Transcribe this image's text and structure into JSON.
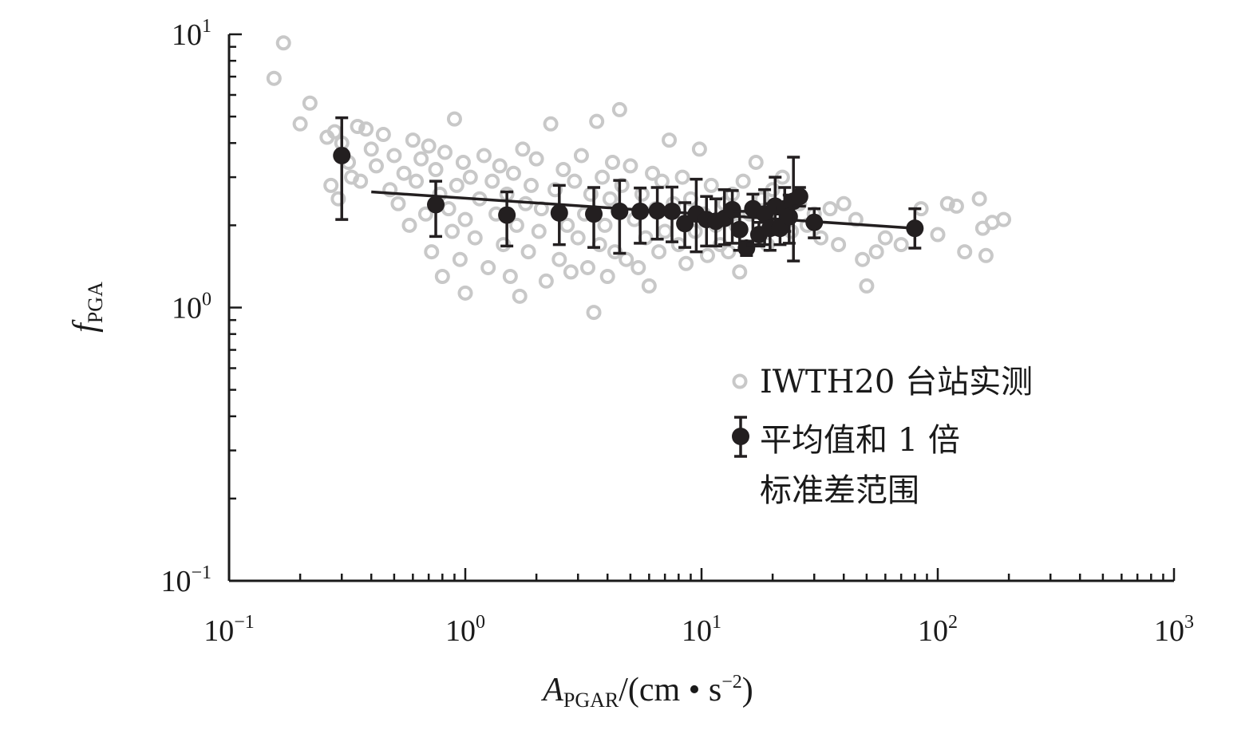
{
  "chart_data": {
    "type": "scatter",
    "x_scale": "log",
    "y_scale": "log",
    "xlim": [
      0.1,
      1000
    ],
    "ylim": [
      0.1,
      10
    ],
    "xticks": [
      {
        "base": "10",
        "exp": "−1"
      },
      {
        "base": "10",
        "exp": "0"
      },
      {
        "base": "10",
        "exp": "1"
      },
      {
        "base": "10",
        "exp": "2"
      },
      {
        "base": "10",
        "exp": "3"
      }
    ],
    "yticks": [
      {
        "base": "10",
        "exp": "−1"
      },
      {
        "base": "10",
        "exp": "0"
      },
      {
        "base": "10",
        "exp": "1"
      }
    ],
    "xlabel": {
      "main": "A",
      "sub": "PGAR",
      "unit": "/(cm • s",
      "unit_exp": "−2",
      "unit_close": ")"
    },
    "ylabel": {
      "main": "f",
      "sub": "PGA"
    },
    "grid": false,
    "legend_position": "center-right",
    "legend": [
      {
        "label": "IWTH20 台站实测",
        "marker": "open-circle"
      },
      {
        "label_line1": "平均值和 1 倍",
        "label_line2": "标准差范围",
        "marker": "filled-circle-errorbar"
      }
    ],
    "colors": {
      "observed": "#c8c8c8",
      "mean": "#231f20",
      "axis": "#1a1a1a"
    },
    "observed_series": {
      "name": "IWTH20 台站实测",
      "points": [
        [
          0.155,
          6.9
        ],
        [
          0.17,
          9.3
        ],
        [
          0.2,
          4.7
        ],
        [
          0.22,
          5.6
        ],
        [
          0.26,
          4.2
        ],
        [
          0.28,
          4.4
        ],
        [
          0.3,
          4.0
        ],
        [
          0.32,
          3.4
        ],
        [
          0.35,
          4.6
        ],
        [
          0.38,
          4.5
        ],
        [
          0.27,
          2.8
        ],
        [
          0.29,
          2.5
        ],
        [
          0.33,
          3.0
        ],
        [
          0.36,
          2.9
        ],
        [
          0.4,
          3.8
        ],
        [
          0.42,
          3.3
        ],
        [
          0.45,
          4.3
        ],
        [
          0.48,
          2.7
        ],
        [
          0.5,
          3.6
        ],
        [
          0.52,
          2.4
        ],
        [
          0.55,
          3.1
        ],
        [
          0.58,
          2.0
        ],
        [
          0.6,
          4.1
        ],
        [
          0.62,
          2.9
        ],
        [
          0.65,
          3.5
        ],
        [
          0.68,
          2.2
        ],
        [
          0.7,
          3.9
        ],
        [
          0.72,
          1.6
        ],
        [
          0.75,
          3.2
        ],
        [
          0.78,
          2.6
        ],
        [
          0.8,
          1.3
        ],
        [
          0.82,
          3.7
        ],
        [
          0.85,
          2.3
        ],
        [
          0.88,
          1.9
        ],
        [
          0.9,
          4.9
        ],
        [
          0.92,
          2.8
        ],
        [
          0.95,
          1.5
        ],
        [
          0.98,
          3.4
        ],
        [
          1.0,
          2.1
        ],
        [
          1.0,
          1.13
        ],
        [
          1.05,
          3.0
        ],
        [
          1.1,
          1.8
        ],
        [
          1.15,
          2.5
        ],
        [
          1.2,
          3.6
        ],
        [
          1.25,
          1.4
        ],
        [
          1.3,
          2.9
        ],
        [
          1.35,
          2.2
        ],
        [
          1.4,
          3.3
        ],
        [
          1.45,
          1.7
        ],
        [
          1.5,
          2.6
        ],
        [
          1.55,
          1.3
        ],
        [
          1.6,
          3.1
        ],
        [
          1.65,
          2.0
        ],
        [
          1.7,
          1.1
        ],
        [
          1.75,
          3.8
        ],
        [
          1.8,
          2.4
        ],
        [
          1.85,
          1.6
        ],
        [
          1.9,
          2.8
        ],
        [
          2.0,
          3.5
        ],
        [
          2.05,
          1.9
        ],
        [
          2.1,
          2.3
        ],
        [
          2.2,
          1.25
        ],
        [
          2.3,
          4.7
        ],
        [
          2.4,
          2.7
        ],
        [
          2.5,
          1.5
        ],
        [
          2.6,
          3.2
        ],
        [
          2.7,
          2.0
        ],
        [
          2.8,
          1.35
        ],
        [
          2.9,
          2.9
        ],
        [
          3.0,
          1.8
        ],
        [
          3.1,
          3.6
        ],
        [
          3.2,
          2.2
        ],
        [
          3.3,
          1.4
        ],
        [
          3.4,
          2.6
        ],
        [
          3.5,
          0.96
        ],
        [
          3.6,
          4.8
        ],
        [
          3.7,
          1.7
        ],
        [
          3.8,
          3.0
        ],
        [
          3.9,
          2.0
        ],
        [
          4.0,
          1.3
        ],
        [
          4.1,
          2.5
        ],
        [
          4.2,
          3.4
        ],
        [
          4.3,
          1.6
        ],
        [
          4.5,
          5.3
        ],
        [
          4.6,
          2.8
        ],
        [
          4.8,
          1.5
        ],
        [
          5.0,
          3.3
        ],
        [
          5.2,
          2.1
        ],
        [
          5.4,
          1.4
        ],
        [
          5.6,
          2.6
        ],
        [
          5.8,
          1.8
        ],
        [
          6.0,
          1.2
        ],
        [
          6.2,
          3.1
        ],
        [
          6.4,
          2.3
        ],
        [
          6.6,
          1.6
        ],
        [
          6.8,
          2.9
        ],
        [
          7.0,
          1.9
        ],
        [
          7.3,
          4.1
        ],
        [
          7.6,
          2.4
        ],
        [
          8.0,
          1.7
        ],
        [
          8.3,
          3.0
        ],
        [
          8.6,
          1.45
        ],
        [
          9.0,
          2.5
        ],
        [
          9.4,
          1.9
        ],
        [
          9.8,
          3.8
        ],
        [
          10.2,
          2.2
        ],
        [
          10.6,
          1.55
        ],
        [
          11.0,
          2.8
        ],
        [
          11.5,
          2.0
        ],
        [
          12.0,
          1.7
        ],
        [
          12.5,
          2.4
        ],
        [
          13.0,
          1.6
        ],
        [
          13.5,
          2.6
        ],
        [
          14.0,
          2.0
        ],
        [
          14.5,
          1.35
        ],
        [
          15.0,
          2.9
        ],
        [
          16.0,
          2.2
        ],
        [
          17.0,
          3.4
        ],
        [
          18.0,
          2.5
        ],
        [
          19.0,
          1.7
        ],
        [
          20.0,
          2.7
        ],
        [
          21.0,
          2.1
        ],
        [
          22.0,
          3.0
        ],
        [
          23.0,
          2.3
        ],
        [
          24.0,
          1.9
        ],
        [
          26.0,
          2.4
        ],
        [
          28.0,
          2.0
        ],
        [
          30.0,
          2.2
        ],
        [
          32.0,
          1.8
        ],
        [
          35.0,
          2.3
        ],
        [
          38.0,
          1.7
        ],
        [
          40.0,
          2.4
        ],
        [
          45.0,
          2.1
        ],
        [
          48.0,
          1.5
        ],
        [
          50.0,
          1.2
        ],
        [
          55.0,
          1.6
        ],
        [
          60.0,
          1.8
        ],
        [
          70.0,
          1.7
        ],
        [
          85.0,
          2.3
        ],
        [
          100.0,
          1.85
        ],
        [
          110.0,
          2.4
        ],
        [
          120.0,
          2.35
        ],
        [
          130.0,
          1.6
        ],
        [
          150.0,
          2.5
        ],
        [
          155.0,
          1.95
        ],
        [
          160.0,
          1.55
        ],
        [
          170.0,
          2.05
        ],
        [
          190.0,
          2.1
        ]
      ]
    },
    "mean_series": {
      "name": "平均值和 1 倍标准差范围",
      "points": [
        {
          "x": 0.3,
          "y": 3.6,
          "lo": 2.1,
          "hi": 4.95
        },
        {
          "x": 0.75,
          "y": 2.38,
          "lo": 1.82,
          "hi": 2.9
        },
        {
          "x": 1.5,
          "y": 2.18,
          "lo": 1.68,
          "hi": 2.65
        },
        {
          "x": 2.5,
          "y": 2.22,
          "lo": 1.7,
          "hi": 2.8
        },
        {
          "x": 3.5,
          "y": 2.2,
          "lo": 1.66,
          "hi": 2.75
        },
        {
          "x": 4.5,
          "y": 2.25,
          "lo": 1.58,
          "hi": 2.92
        },
        {
          "x": 5.5,
          "y": 2.25,
          "lo": 1.72,
          "hi": 2.74
        },
        {
          "x": 6.5,
          "y": 2.26,
          "lo": 1.78,
          "hi": 2.75
        },
        {
          "x": 7.5,
          "y": 2.25,
          "lo": 1.74,
          "hi": 2.76
        },
        {
          "x": 8.5,
          "y": 2.03,
          "lo": 1.66,
          "hi": 2.42
        },
        {
          "x": 9.5,
          "y": 2.2,
          "lo": 1.6,
          "hi": 2.95
        },
        {
          "x": 10.5,
          "y": 2.1,
          "lo": 1.68,
          "hi": 2.55
        },
        {
          "x": 11.5,
          "y": 2.07,
          "lo": 1.68,
          "hi": 2.5
        },
        {
          "x": 12.5,
          "y": 2.12,
          "lo": 1.7,
          "hi": 2.7
        },
        {
          "x": 13.5,
          "y": 2.28,
          "lo": 1.72,
          "hi": 2.68
        },
        {
          "x": 14.5,
          "y": 1.93,
          "lo": 1.62,
          "hi": 2.25
        },
        {
          "x": 15.5,
          "y": 1.65,
          "lo": 1.55,
          "hi": 1.75
        },
        {
          "x": 16.5,
          "y": 2.3,
          "lo": 1.7,
          "hi": 2.6
        },
        {
          "x": 17.5,
          "y": 1.85,
          "lo": 1.68,
          "hi": 2.05
        },
        {
          "x": 18.5,
          "y": 2.2,
          "lo": 1.7,
          "hi": 2.7
        },
        {
          "x": 19.5,
          "y": 1.95,
          "lo": 1.62,
          "hi": 2.4
        },
        {
          "x": 20.5,
          "y": 2.35,
          "lo": 1.85,
          "hi": 3.0
        },
        {
          "x": 21.5,
          "y": 1.95,
          "lo": 1.7,
          "hi": 2.2
        },
        {
          "x": 22.5,
          "y": 2.3,
          "lo": 1.9,
          "hi": 2.75
        },
        {
          "x": 23.5,
          "y": 2.15,
          "lo": 1.72,
          "hi": 2.58
        },
        {
          "x": 24.5,
          "y": 2.45,
          "lo": 1.48,
          "hi": 3.55
        },
        {
          "x": 26.0,
          "y": 2.55,
          "lo": 2.35,
          "hi": 2.75
        },
        {
          "x": 30.0,
          "y": 2.05,
          "lo": 1.8,
          "hi": 2.3
        },
        {
          "x": 80.0,
          "y": 1.95,
          "lo": 1.65,
          "hi": 2.3
        }
      ]
    },
    "fit_line": {
      "x": [
        0.4,
        80.0
      ],
      "y": [
        2.65,
        1.95
      ]
    }
  }
}
